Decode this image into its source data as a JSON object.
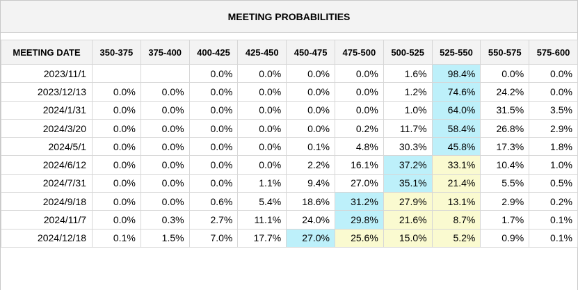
{
  "title": "MEETING PROBABILITIES",
  "colors": {
    "highlight_blue": "#bdf0fa",
    "highlight_yellow": "#fafad0",
    "header_bg": "#f3f3f3",
    "border": "#d6d6d6"
  },
  "columns": [
    "MEETING DATE",
    "350-375",
    "375-400",
    "400-425",
    "425-450",
    "450-475",
    "475-500",
    "500-525",
    "525-550",
    "550-575",
    "575-600"
  ],
  "rows": [
    {
      "date": "2023/11/1",
      "cells": [
        "",
        "",
        "0.0%",
        "0.0%",
        "0.0%",
        "0.0%",
        "1.6%",
        "98.4%",
        "0.0%",
        "0.0%"
      ],
      "hl": [
        "",
        "",
        "",
        "",
        "",
        "",
        "",
        "blue",
        "",
        ""
      ]
    },
    {
      "date": "2023/12/13",
      "cells": [
        "0.0%",
        "0.0%",
        "0.0%",
        "0.0%",
        "0.0%",
        "0.0%",
        "1.2%",
        "74.6%",
        "24.2%",
        "0.0%"
      ],
      "hl": [
        "",
        "",
        "",
        "",
        "",
        "",
        "",
        "blue",
        "",
        ""
      ]
    },
    {
      "date": "2024/1/31",
      "cells": [
        "0.0%",
        "0.0%",
        "0.0%",
        "0.0%",
        "0.0%",
        "0.0%",
        "1.0%",
        "64.0%",
        "31.5%",
        "3.5%"
      ],
      "hl": [
        "",
        "",
        "",
        "",
        "",
        "",
        "",
        "blue",
        "",
        ""
      ]
    },
    {
      "date": "2024/3/20",
      "cells": [
        "0.0%",
        "0.0%",
        "0.0%",
        "0.0%",
        "0.0%",
        "0.2%",
        "11.7%",
        "58.4%",
        "26.8%",
        "2.9%"
      ],
      "hl": [
        "",
        "",
        "",
        "",
        "",
        "",
        "",
        "blue",
        "",
        ""
      ]
    },
    {
      "date": "2024/5/1",
      "cells": [
        "0.0%",
        "0.0%",
        "0.0%",
        "0.0%",
        "0.1%",
        "4.8%",
        "30.3%",
        "45.8%",
        "17.3%",
        "1.8%"
      ],
      "hl": [
        "",
        "",
        "",
        "",
        "",
        "",
        "",
        "blue",
        "",
        ""
      ]
    },
    {
      "date": "2024/6/12",
      "cells": [
        "0.0%",
        "0.0%",
        "0.0%",
        "0.0%",
        "2.2%",
        "16.1%",
        "37.2%",
        "33.1%",
        "10.4%",
        "1.0%"
      ],
      "hl": [
        "",
        "",
        "",
        "",
        "",
        "",
        "blue",
        "yellow",
        "",
        ""
      ]
    },
    {
      "date": "2024/7/31",
      "cells": [
        "0.0%",
        "0.0%",
        "0.0%",
        "1.1%",
        "9.4%",
        "27.0%",
        "35.1%",
        "21.4%",
        "5.5%",
        "0.5%"
      ],
      "hl": [
        "",
        "",
        "",
        "",
        "",
        "",
        "blue",
        "yellow",
        "",
        ""
      ]
    },
    {
      "date": "2024/9/18",
      "cells": [
        "0.0%",
        "0.0%",
        "0.6%",
        "5.4%",
        "18.6%",
        "31.2%",
        "27.9%",
        "13.1%",
        "2.9%",
        "0.2%"
      ],
      "hl": [
        "",
        "",
        "",
        "",
        "",
        "blue",
        "yellow",
        "yellow",
        "",
        ""
      ]
    },
    {
      "date": "2024/11/7",
      "cells": [
        "0.0%",
        "0.3%",
        "2.7%",
        "11.1%",
        "24.0%",
        "29.8%",
        "21.6%",
        "8.7%",
        "1.7%",
        "0.1%"
      ],
      "hl": [
        "",
        "",
        "",
        "",
        "",
        "blue",
        "yellow",
        "yellow",
        "",
        ""
      ]
    },
    {
      "date": "2024/12/18",
      "cells": [
        "0.1%",
        "1.5%",
        "7.0%",
        "17.7%",
        "27.0%",
        "25.6%",
        "15.0%",
        "5.2%",
        "0.9%",
        "0.1%"
      ],
      "hl": [
        "",
        "",
        "",
        "",
        "blue",
        "yellow",
        "yellow",
        "yellow",
        "",
        ""
      ]
    }
  ]
}
